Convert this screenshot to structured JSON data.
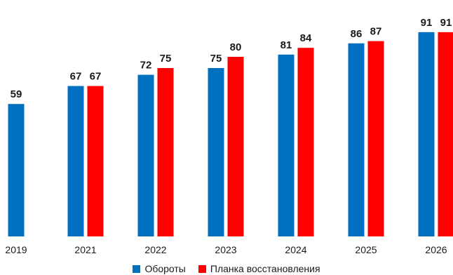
{
  "chart_data": {
    "type": "bar",
    "categories": [
      "2019",
      "2021",
      "2022",
      "2023",
      "2024",
      "2025",
      "2026"
    ],
    "series": [
      {
        "name": "Обороты",
        "color": "#0070C0",
        "values": [
          59,
          67,
          72,
          75,
          81,
          86,
          91
        ]
      },
      {
        "name": "Планка восстановления",
        "color": "#FF0000",
        "values": [
          null,
          67,
          75,
          80,
          84,
          87,
          91
        ]
      }
    ],
    "title": "",
    "xlabel": "",
    "ylabel": "",
    "ylim": [
      0,
      100
    ],
    "grid": false,
    "data_labels": true,
    "legend_position": "bottom"
  }
}
